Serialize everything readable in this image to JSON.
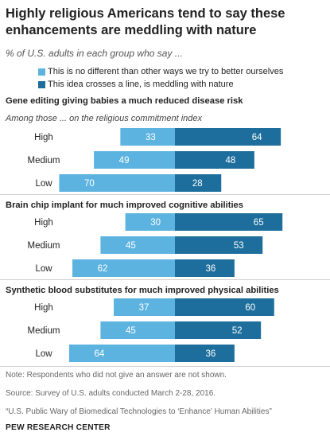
{
  "title": "Highly religious Americans tend to say these enhancements are meddling with nature",
  "subtitle": "% of U.S. adults in each group who say ...",
  "colors": {
    "left": "#5cb3e0",
    "right": "#1d6e9c"
  },
  "legend": [
    {
      "label": "This is no different than other ways we try to better ourselves",
      "color": "#5cb3e0"
    },
    {
      "label": "This idea crosses a line, is meddling with nature",
      "color": "#1d6e9c"
    }
  ],
  "chart_data": [
    {
      "type": "bar",
      "title": "Gene editing giving babies a much reduced disease risk",
      "subtitle": "Among those ... on the religious commitment index",
      "categories": [
        "High",
        "Medium",
        "Low"
      ],
      "series": [
        {
          "name": "This is no different than other ways we try to better ourselves",
          "values": [
            33,
            49,
            70
          ]
        },
        {
          "name": "This idea crosses a line, is meddling with nature",
          "values": [
            64,
            48,
            28
          ]
        }
      ]
    },
    {
      "type": "bar",
      "title": "Brain chip implant for much improved  cognitive abilities",
      "categories": [
        "High",
        "Medium",
        "Low"
      ],
      "series": [
        {
          "name": "This is no different than other ways we try to better ourselves",
          "values": [
            30,
            45,
            62
          ]
        },
        {
          "name": "This idea crosses a line, is meddling with nature",
          "values": [
            65,
            53,
            36
          ]
        }
      ]
    },
    {
      "type": "bar",
      "title": "Synthetic blood substitutes for much improved  physical abilities",
      "categories": [
        "High",
        "Medium",
        "Low"
      ],
      "series": [
        {
          "name": "This is no different than other ways we try to better ourselves",
          "values": [
            37,
            45,
            64
          ]
        },
        {
          "name": "This idea crosses a line, is meddling with nature",
          "values": [
            60,
            52,
            36
          ]
        }
      ]
    }
  ],
  "notes": {
    "note": "Note: Respondents who did not give an answer are not shown.",
    "source": "Source: Survey of U.S. adults conducted March 2-28, 2016.",
    "report": "“U.S. Public Wary of Biomedical Technologies to ‘Enhance’ Human Abilities”"
  },
  "brand": "PEW RESEARCH CENTER"
}
